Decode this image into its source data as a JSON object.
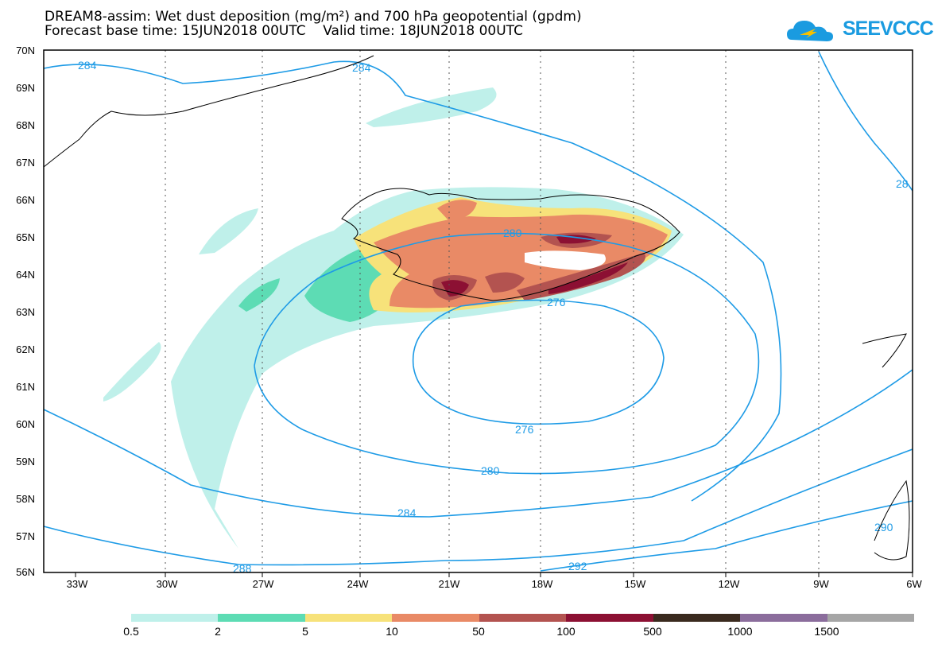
{
  "title": {
    "line1": "DREAM8-assim: Wet dust deposition (mg/m²) and 700 hPa geopotential (gpdm)",
    "line2": "Forecast base time: 15JUN2018 00UTC    Valid time: 18JUN2018 00UTC"
  },
  "logo": {
    "text": "SEEVCCC",
    "icon": "cloud-icon",
    "color": "#1a9be0"
  },
  "axes": {
    "latitude_labels": [
      "70N",
      "69N",
      "68N",
      "67N",
      "66N",
      "65N",
      "64N",
      "63N",
      "62N",
      "61N",
      "60N",
      "59N",
      "58N",
      "57N",
      "56N"
    ],
    "longitude_labels": [
      "33W",
      "30W",
      "27W",
      "24W",
      "21W",
      "18W",
      "15W",
      "12W",
      "9W",
      "6W"
    ]
  },
  "contours": {
    "color": "#1e9be6",
    "labels": [
      "284",
      "284",
      "280",
      "276",
      "276",
      "280",
      "284",
      "288",
      "292",
      "28",
      "290"
    ]
  },
  "legend": {
    "colors": [
      "#bff0ea",
      "#5ddcb4",
      "#f7e27a",
      "#e98a66",
      "#b35350",
      "#8c1033",
      "#3a2a1e",
      "#8b6d9c",
      "#a6a6a6"
    ],
    "labels": [
      "0.5",
      "2",
      "5",
      "10",
      "50",
      "100",
      "500",
      "1000",
      "1500"
    ]
  }
}
